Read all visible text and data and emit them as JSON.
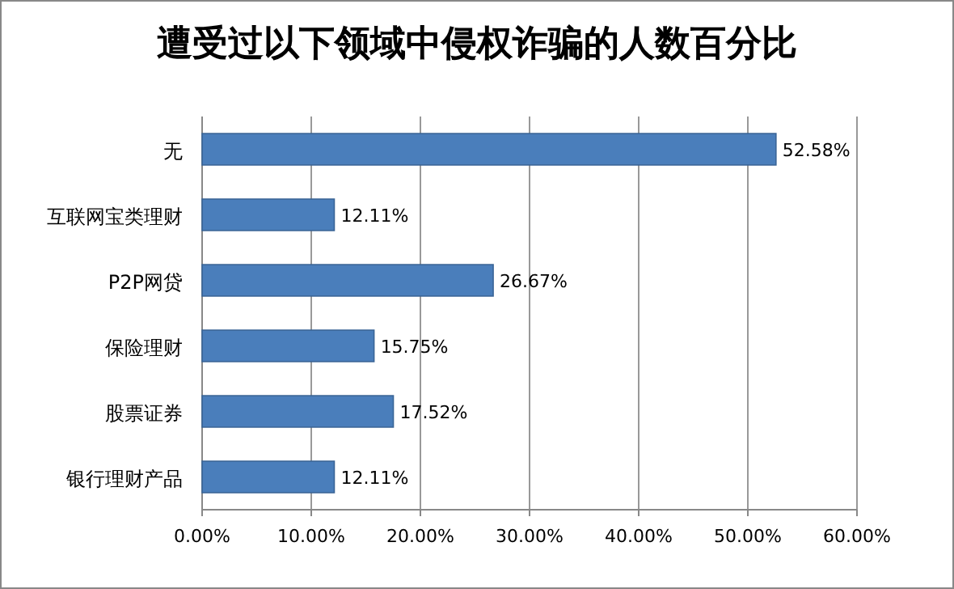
{
  "chart_data": {
    "type": "bar",
    "orientation": "horizontal",
    "title": "遭受过以下领域中侵权诈骗的人数百分比",
    "categories": [
      "无",
      "互联网宝类理财",
      "P2P网贷",
      "保险理财",
      "股票证券",
      "银行理财产品"
    ],
    "values": [
      52.58,
      12.11,
      26.67,
      15.75,
      17.52,
      12.11
    ],
    "value_labels": [
      "52.58%",
      "12.11%",
      "26.67%",
      "15.75%",
      "17.52%",
      "12.11%"
    ],
    "color": "#4a7ebb",
    "xlim": [
      0,
      60
    ],
    "xticks": [
      {
        "value": 0,
        "label": "0.00%"
      },
      {
        "value": 10,
        "label": "10.00%"
      },
      {
        "value": 20,
        "label": "20.00%"
      },
      {
        "value": 30,
        "label": "30.00%"
      },
      {
        "value": 40,
        "label": "40.00%"
      },
      {
        "value": 50,
        "label": "50.00%"
      },
      {
        "value": 60,
        "label": "60.00%"
      }
    ],
    "grid": "x"
  }
}
